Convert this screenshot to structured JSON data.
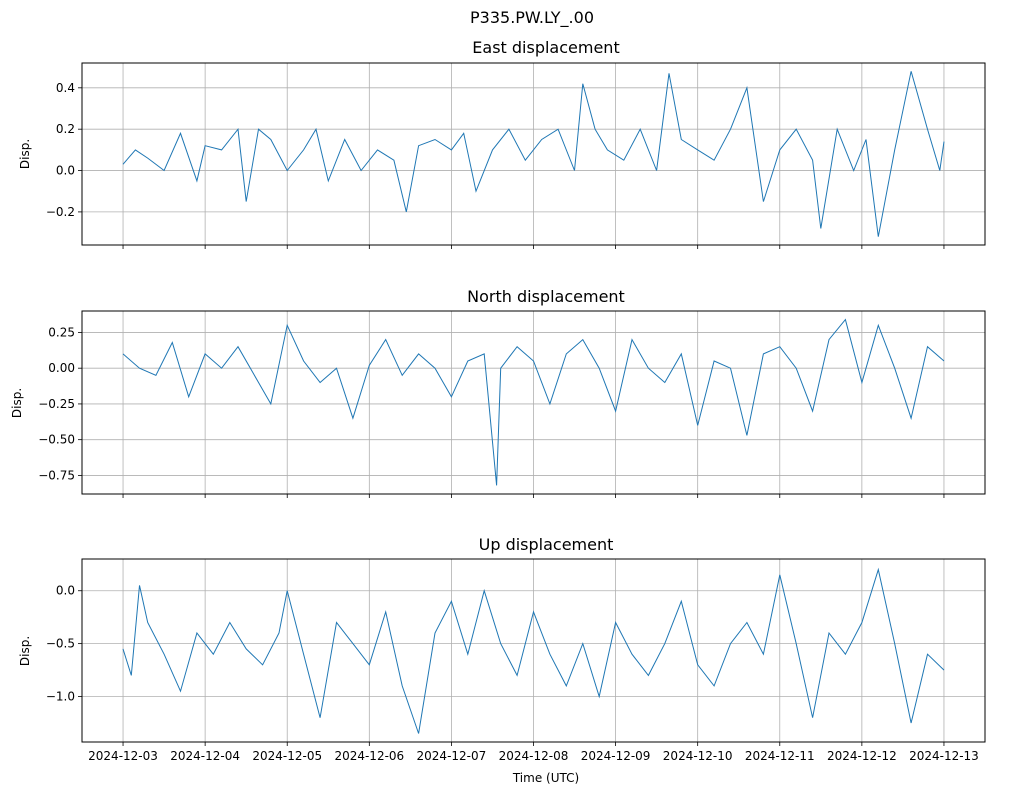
{
  "figure_title": "P335.PW.LY_.00",
  "xlabel": "Time (UTC)",
  "x_tick_labels": [
    "2024-12-03",
    "2024-12-04",
    "2024-12-05",
    "2024-12-06",
    "2024-12-07",
    "2024-12-08",
    "2024-12-09",
    "2024-12-10",
    "2024-12-11",
    "2024-12-12",
    "2024-12-13"
  ],
  "line_color": "#1f77b4",
  "chart_data": [
    {
      "type": "line",
      "title": "East displacement",
      "ylabel": "Disp.",
      "xlim_days": [
        -0.5,
        10.5
      ],
      "ylim": [
        -0.36,
        0.52
      ],
      "y_ticks": [
        -0.2,
        0.0,
        0.2,
        0.4
      ],
      "y_tick_labels": [
        "−0.2",
        "0.0",
        "0.2",
        "0.4"
      ],
      "x": [
        0,
        0.15,
        0.3,
        0.5,
        0.7,
        0.9,
        1.0,
        1.2,
        1.4,
        1.5,
        1.65,
        1.8,
        2.0,
        2.2,
        2.35,
        2.5,
        2.7,
        2.9,
        3.1,
        3.3,
        3.45,
        3.6,
        3.8,
        4.0,
        4.15,
        4.3,
        4.5,
        4.7,
        4.9,
        5.1,
        5.3,
        5.5,
        5.6,
        5.75,
        5.9,
        6.1,
        6.3,
        6.5,
        6.65,
        6.8,
        7.0,
        7.2,
        7.4,
        7.6,
        7.8,
        8.0,
        8.2,
        8.4,
        8.5,
        8.7,
        8.9,
        9.05,
        9.2,
        9.4,
        9.6,
        9.8,
        9.95,
        10.0
      ],
      "y": [
        0.03,
        0.1,
        0.06,
        0.0,
        0.18,
        -0.05,
        0.12,
        0.1,
        0.2,
        -0.15,
        0.2,
        0.15,
        0.0,
        0.1,
        0.2,
        -0.05,
        0.15,
        0.0,
        0.1,
        0.05,
        -0.2,
        0.12,
        0.15,
        0.1,
        0.18,
        -0.1,
        0.1,
        0.2,
        0.05,
        0.15,
        0.2,
        0.0,
        0.42,
        0.2,
        0.1,
        0.05,
        0.2,
        0.0,
        0.47,
        0.15,
        0.1,
        0.05,
        0.2,
        0.4,
        -0.15,
        0.1,
        0.2,
        0.05,
        -0.28,
        0.2,
        0.0,
        0.15,
        -0.32,
        0.1,
        0.48,
        0.2,
        0.0,
        0.14
      ]
    },
    {
      "type": "line",
      "title": "North displacement",
      "ylabel": "Disp.",
      "xlim_days": [
        -0.5,
        10.5
      ],
      "ylim": [
        -0.88,
        0.4
      ],
      "y_ticks": [
        -0.75,
        -0.5,
        -0.25,
        0.0,
        0.25
      ],
      "y_tick_labels": [
        "−0.75",
        "−0.50",
        "−0.25",
        "0.00",
        "0.25"
      ],
      "x": [
        0,
        0.2,
        0.4,
        0.6,
        0.8,
        1.0,
        1.2,
        1.4,
        1.6,
        1.8,
        2.0,
        2.2,
        2.4,
        2.6,
        2.8,
        3.0,
        3.2,
        3.4,
        3.6,
        3.8,
        4.0,
        4.2,
        4.4,
        4.55,
        4.6,
        4.8,
        5.0,
        5.2,
        5.4,
        5.6,
        5.8,
        6.0,
        6.2,
        6.4,
        6.6,
        6.8,
        7.0,
        7.2,
        7.4,
        7.6,
        7.8,
        8.0,
        8.2,
        8.4,
        8.6,
        8.8,
        9.0,
        9.2,
        9.4,
        9.6,
        9.8,
        10.0
      ],
      "y": [
        0.1,
        0.0,
        -0.05,
        0.18,
        -0.2,
        0.1,
        0.0,
        0.15,
        -0.05,
        -0.25,
        0.3,
        0.05,
        -0.1,
        0.0,
        -0.35,
        0.02,
        0.2,
        -0.05,
        0.1,
        0.0,
        -0.2,
        0.05,
        0.1,
        -0.82,
        0.0,
        0.15,
        0.05,
        -0.25,
        0.1,
        0.2,
        0.0,
        -0.3,
        0.2,
        0.0,
        -0.1,
        0.1,
        -0.4,
        0.05,
        0.0,
        -0.47,
        0.1,
        0.15,
        0.0,
        -0.3,
        0.2,
        0.34,
        -0.1,
        0.3,
        0.0,
        -0.35,
        0.15,
        0.05
      ]
    },
    {
      "type": "line",
      "title": "Up displacement",
      "ylabel": "Disp.",
      "xlim_days": [
        -0.5,
        10.5
      ],
      "ylim": [
        -1.43,
        0.3
      ],
      "y_ticks": [
        -1.0,
        -0.5,
        0.0
      ],
      "y_tick_labels": [
        "−1.0",
        "−0.5",
        "0.0"
      ],
      "x": [
        0,
        0.1,
        0.2,
        0.3,
        0.5,
        0.7,
        0.9,
        1.1,
        1.3,
        1.5,
        1.7,
        1.9,
        2.0,
        2.2,
        2.4,
        2.6,
        2.8,
        3.0,
        3.2,
        3.4,
        3.6,
        3.8,
        4.0,
        4.2,
        4.4,
        4.6,
        4.8,
        5.0,
        5.2,
        5.4,
        5.6,
        5.8,
        6.0,
        6.2,
        6.4,
        6.6,
        6.8,
        7.0,
        7.2,
        7.4,
        7.6,
        7.8,
        8.0,
        8.2,
        8.4,
        8.6,
        8.8,
        9.0,
        9.2,
        9.4,
        9.6,
        9.8,
        10.0
      ],
      "y": [
        -0.55,
        -0.8,
        0.05,
        -0.3,
        -0.6,
        -0.95,
        -0.4,
        -0.6,
        -0.3,
        -0.55,
        -0.7,
        -0.4,
        0.0,
        -0.6,
        -1.2,
        -0.3,
        -0.5,
        -0.7,
        -0.2,
        -0.9,
        -1.35,
        -0.4,
        -0.1,
        -0.6,
        0.0,
        -0.5,
        -0.8,
        -0.2,
        -0.6,
        -0.9,
        -0.5,
        -1.0,
        -0.3,
        -0.6,
        -0.8,
        -0.5,
        -0.1,
        -0.7,
        -0.9,
        -0.5,
        -0.3,
        -0.6,
        0.15,
        -0.5,
        -1.2,
        -0.4,
        -0.6,
        -0.3,
        0.2,
        -0.5,
        -1.25,
        -0.6,
        -0.75
      ]
    }
  ]
}
